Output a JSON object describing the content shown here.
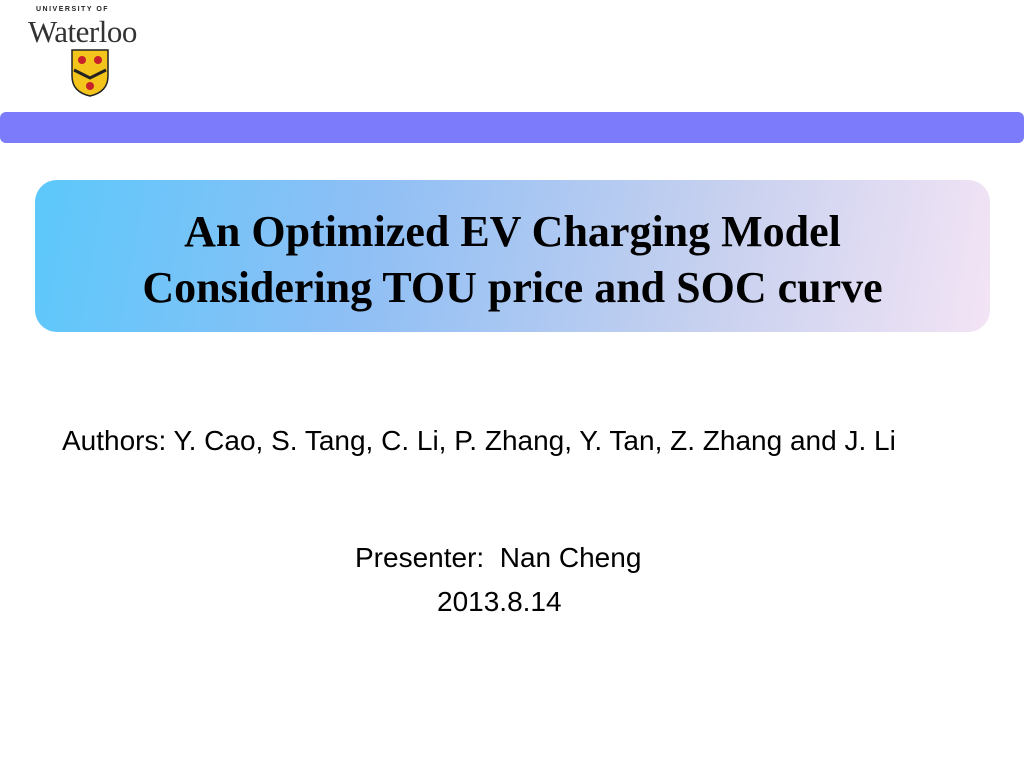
{
  "logo": {
    "top": "UNIVERSITY OF",
    "name": "Waterloo"
  },
  "title": [
    "An Optimized EV Charging Model",
    "Considering TOU price and SOC curve"
  ],
  "authors": "Authors: Y. Cao, S. Tang, C. Li, P. Zhang, Y. Tan, Z. Zhang and J. Li",
  "presenter": "Presenter:  Nan Cheng",
  "date": "2013.8.14"
}
